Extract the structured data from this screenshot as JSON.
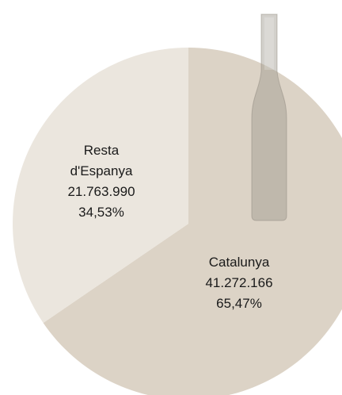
{
  "chart_data": {
    "type": "pie",
    "categories": [
      "Catalunya",
      "Resta d'Espanya"
    ],
    "values": [
      41272166,
      21763990
    ],
    "value_labels": [
      "41.272.166",
      "21.763.990"
    ],
    "percentages": [
      65.47,
      34.53
    ],
    "percentage_labels": [
      "65,47%",
      "34,53%"
    ],
    "colors": [
      "#dcd3c6",
      "#ebe6de"
    ]
  }
}
